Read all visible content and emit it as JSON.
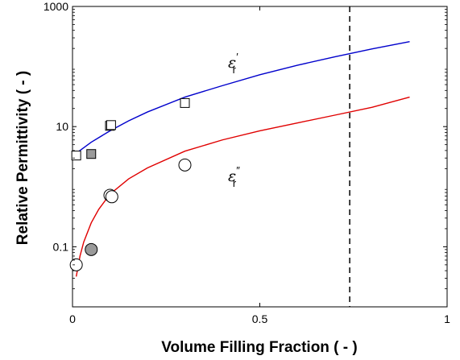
{
  "chart_data": {
    "type": "scatter",
    "xlabel": "Volume Filling Fraction ( - )",
    "ylabel": "Relative Permittivity  ( - )",
    "xlim": [
      0,
      1
    ],
    "ylim": [
      0.01,
      1000
    ],
    "yscale": "log",
    "xticks": [
      {
        "value": 0,
        "label": "0"
      },
      {
        "value": 0.5,
        "label": "0.5"
      },
      {
        "value": 1,
        "label": "1"
      }
    ],
    "yticks": [
      {
        "value": 0.1,
        "label": "0.1"
      },
      {
        "value": 10,
        "label": "10"
      },
      {
        "value": 1000,
        "label": "1000"
      }
    ],
    "grid": false,
    "vline": {
      "x": 0.74,
      "style": "dashed",
      "color": "#000000"
    },
    "series": [
      {
        "name": "ε′r",
        "label_main": "ε",
        "label_sup": "′",
        "label_sub": "r",
        "color": "#0000cc",
        "curve_x": [
          0.015,
          0.05,
          0.1,
          0.15,
          0.2,
          0.3,
          0.4,
          0.5,
          0.6,
          0.7,
          0.8,
          0.9
        ],
        "curve_y": [
          3.8,
          5.5,
          8.5,
          12.5,
          17.5,
          31,
          48,
          73,
          105,
          145,
          197,
          260
        ],
        "points_open": [
          {
            "x": 0.01,
            "y": 3.3
          },
          {
            "x": 0.1,
            "y": 10.3
          },
          {
            "x": 0.103,
            "y": 10.6
          },
          {
            "x": 0.3,
            "y": 24.7
          }
        ],
        "points_filled": [
          {
            "x": 0.05,
            "y": 3.5
          }
        ],
        "marker": "square"
      },
      {
        "name": "ε″r",
        "label_main": "ε",
        "label_sup": "″",
        "label_sub": "r",
        "color": "#e00000",
        "curve_x": [
          0.01,
          0.02,
          0.03,
          0.05,
          0.07,
          0.1,
          0.15,
          0.2,
          0.3,
          0.4,
          0.5,
          0.6,
          0.7,
          0.8,
          0.9
        ],
        "curve_y": [
          0.032,
          0.07,
          0.12,
          0.25,
          0.42,
          0.75,
          1.35,
          2.05,
          3.9,
          6.0,
          8.5,
          11.5,
          15.5,
          21,
          31
        ],
        "points_open": [
          {
            "x": 0.01,
            "y": 0.05
          },
          {
            "x": 0.1,
            "y": 0.72
          },
          {
            "x": 0.105,
            "y": 0.68
          },
          {
            "x": 0.3,
            "y": 2.3
          }
        ],
        "points_filled": [
          {
            "x": 0.05,
            "y": 0.09
          }
        ],
        "marker": "circle"
      }
    ]
  }
}
